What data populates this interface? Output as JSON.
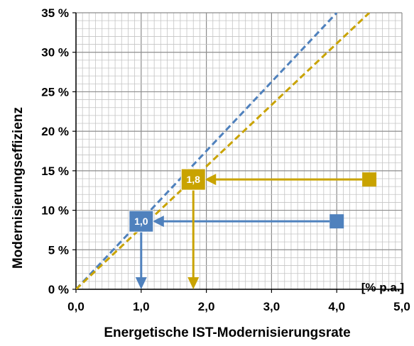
{
  "chart_data": {
    "type": "line",
    "xlabel": "Energetische IST-Modernisierungsrate",
    "ylabel": "Modernisierungseffizienz",
    "x_unit_label": "[% p.a.]",
    "xlim": [
      0,
      5
    ],
    "ylim": [
      0,
      35
    ],
    "x_ticks": [
      "0,0",
      "1,0",
      "2,0",
      "3,0",
      "4,0",
      "5,0"
    ],
    "y_ticks": [
      "0 %",
      "5 %",
      "10 %",
      "15 %",
      "20 %",
      "25 %",
      "30 %",
      "35 %"
    ],
    "grid": true,
    "colors": {
      "blue": "#4f81bd",
      "gold": "#c9a300"
    },
    "series": [
      {
        "color": "blue",
        "style": "dashed",
        "x": [
          0.0,
          4.0
        ],
        "y": [
          0,
          35
        ]
      },
      {
        "color": "gold",
        "style": "dashed",
        "x": [
          0.0,
          4.5
        ],
        "y": [
          0,
          35
        ]
      }
    ],
    "annotations": [
      {
        "color": "blue",
        "start": {
          "x": 4.0,
          "y": 8.6
        },
        "end": {
          "x": 1.0,
          "y": 8.6
        },
        "label": "1,0",
        "drop_to_x": 1.0
      },
      {
        "color": "gold",
        "start": {
          "x": 4.5,
          "y": 13.9
        },
        "end": {
          "x": 1.8,
          "y": 13.9
        },
        "label": "1,8",
        "drop_to_x": 1.8
      }
    ]
  }
}
